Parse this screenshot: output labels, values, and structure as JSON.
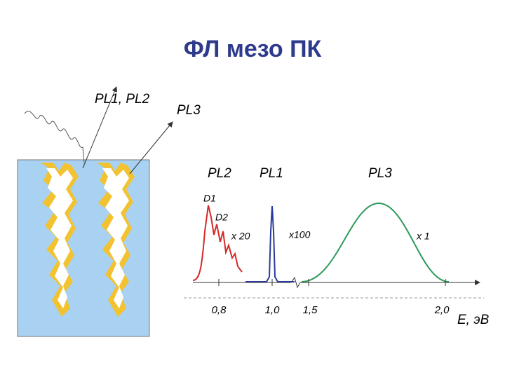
{
  "title": "ФЛ мезо ПК",
  "labels": {
    "excitation": "PL1, PL2",
    "emission": "PL3"
  },
  "spectra": {
    "peaks": [
      {
        "name": "PL2",
        "factor": "x 20",
        "sub": [
          "D1",
          "D2"
        ]
      },
      {
        "name": "PL1",
        "factor": "x100"
      },
      {
        "name": "PL3",
        "factor": "x 1"
      }
    ]
  },
  "axis": {
    "ticks": [
      "0,8",
      "1,0",
      "1,5",
      "2,0"
    ],
    "label": "E, эВ"
  }
}
